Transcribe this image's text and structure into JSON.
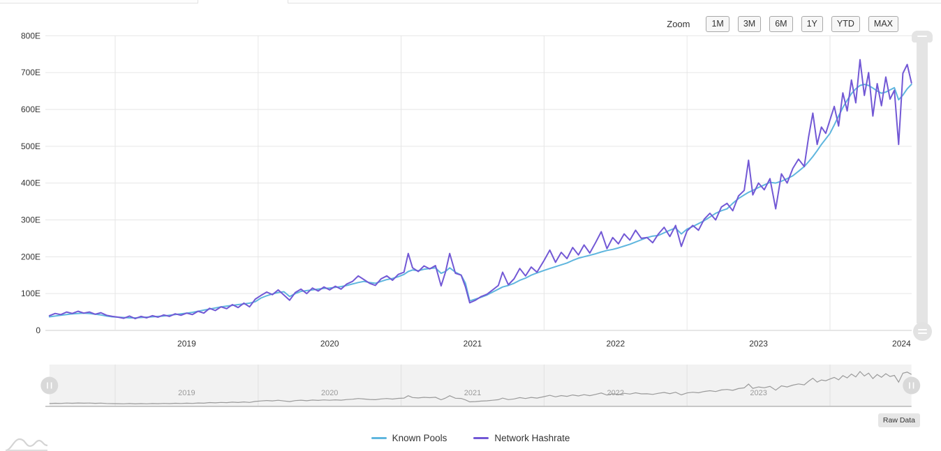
{
  "toolbar": {
    "zoom_label": "Zoom",
    "buttons": [
      "1M",
      "3M",
      "6M",
      "1Y",
      "YTD",
      "MAX"
    ]
  },
  "raw_data_label": "Raw Data",
  "legend": [
    {
      "label": "Known Pools",
      "color": "#5fb6de"
    },
    {
      "label": "Network Hashrate",
      "color": "#7258d5"
    }
  ],
  "chart_data": {
    "type": "line",
    "title": "",
    "xlabel": "",
    "ylabel": "",
    "x_unit": "decimal_year",
    "ylim": [
      0,
      800
    ],
    "xlim": [
      2018.54,
      2024.6
    ],
    "grid": true,
    "legend_position": "bottom",
    "yticks": {
      "values": [
        0,
        100,
        200,
        300,
        400,
        500,
        600,
        700,
        800
      ],
      "labels": [
        "0",
        "100E",
        "200E",
        "300E",
        "400E",
        "500E",
        "600E",
        "700E",
        "800E"
      ]
    },
    "x_year_gridlines": [
      2019,
      2020,
      2021,
      2022,
      2023,
      2024
    ],
    "x_year_labels": [
      "2019",
      "2020",
      "2021",
      "2022",
      "2023",
      "2024"
    ],
    "navigator": {
      "year_labels": [
        "2019",
        "2020",
        "2021",
        "2022",
        "2023"
      ],
      "series": "Network Hashrate"
    },
    "x": [
      2018.54,
      2018.58,
      2018.62,
      2018.66,
      2018.7,
      2018.74,
      2018.78,
      2018.82,
      2018.86,
      2018.9,
      2018.94,
      2018.98,
      2019.02,
      2019.06,
      2019.1,
      2019.14,
      2019.18,
      2019.22,
      2019.26,
      2019.3,
      2019.34,
      2019.38,
      2019.42,
      2019.46,
      2019.5,
      2019.54,
      2019.58,
      2019.62,
      2019.66,
      2019.7,
      2019.74,
      2019.78,
      2019.82,
      2019.86,
      2019.9,
      2019.94,
      2019.98,
      2020.02,
      2020.06,
      2020.1,
      2020.14,
      2020.18,
      2020.22,
      2020.26,
      2020.3,
      2020.34,
      2020.38,
      2020.42,
      2020.46,
      2020.5,
      2020.54,
      2020.58,
      2020.62,
      2020.66,
      2020.7,
      2020.74,
      2020.78,
      2020.82,
      2020.86,
      2020.9,
      2020.94,
      2020.98,
      2021.02,
      2021.05,
      2021.08,
      2021.12,
      2021.16,
      2021.2,
      2021.24,
      2021.28,
      2021.31,
      2021.34,
      2021.38,
      2021.42,
      2021.45,
      2021.48,
      2021.52,
      2021.56,
      2021.6,
      2021.64,
      2021.68,
      2021.71,
      2021.75,
      2021.79,
      2021.83,
      2021.87,
      2021.91,
      2021.95,
      2022.0,
      2022.04,
      2022.08,
      2022.12,
      2022.16,
      2022.2,
      2022.24,
      2022.28,
      2022.32,
      2022.36,
      2022.4,
      2022.44,
      2022.48,
      2022.52,
      2022.56,
      2022.6,
      2022.64,
      2022.68,
      2022.72,
      2022.76,
      2022.8,
      2022.84,
      2022.88,
      2022.92,
      2022.96,
      2023.0,
      2023.04,
      2023.08,
      2023.12,
      2023.16,
      2023.2,
      2023.24,
      2023.28,
      2023.32,
      2023.36,
      2023.4,
      2023.43,
      2023.46,
      2023.5,
      2023.54,
      2023.58,
      2023.62,
      2023.66,
      2023.7,
      2023.74,
      2023.78,
      2023.82,
      2023.85,
      2023.88,
      2023.91,
      2023.94,
      2023.97,
      2024.0,
      2024.03,
      2024.06,
      2024.09,
      2024.12,
      2024.15,
      2024.18,
      2024.21,
      2024.24,
      2024.27,
      2024.3,
      2024.33,
      2024.36,
      2024.39,
      2024.42,
      2024.45,
      2024.48,
      2024.51,
      2024.54,
      2024.57
    ],
    "series": [
      {
        "name": "Known Pools",
        "color": "#5fb6de",
        "width": 2,
        "values": [
          37,
          39,
          41,
          43,
          45,
          46,
          47,
          46,
          44,
          42,
          39,
          37,
          36,
          35,
          34,
          34,
          35,
          36,
          37,
          38,
          39,
          41,
          43,
          45,
          47,
          49,
          52,
          55,
          58,
          61,
          64,
          66,
          68,
          70,
          72,
          74,
          78,
          88,
          94,
          99,
          103,
          105,
          92,
          100,
          106,
          108,
          110,
          112,
          114,
          115,
          117,
          119,
          122,
          126,
          130,
          133,
          130,
          128,
          133,
          138,
          141,
          146,
          152,
          160,
          164,
          162,
          166,
          168,
          170,
          155,
          160,
          170,
          158,
          150,
          128,
          80,
          85,
          90,
          96,
          104,
          112,
          118,
          122,
          128,
          136,
          142,
          150,
          156,
          163,
          168,
          173,
          178,
          183,
          190,
          196,
          200,
          204,
          208,
          213,
          217,
          220,
          224,
          229,
          234,
          240,
          246,
          252,
          256,
          258,
          265,
          272,
          278,
          262,
          275,
          282,
          290,
          298,
          308,
          318,
          325,
          330,
          345,
          358,
          368,
          375,
          380,
          388,
          395,
          402,
          400,
          405,
          412,
          420,
          432,
          445,
          458,
          472,
          488,
          505,
          520,
          535,
          558,
          582,
          605,
          625,
          643,
          656,
          665,
          668,
          665,
          658,
          650,
          644,
          647,
          653,
          659,
          626,
          639,
          656,
          668
        ]
      },
      {
        "name": "Network Hashrate",
        "color": "#7258d5",
        "width": 2,
        "values": [
          40,
          46,
          43,
          50,
          46,
          52,
          47,
          50,
          44,
          48,
          41,
          38,
          36,
          33,
          39,
          32,
          38,
          34,
          40,
          36,
          42,
          38,
          45,
          41,
          47,
          43,
          52,
          47,
          60,
          54,
          64,
          59,
          70,
          62,
          74,
          64,
          85,
          95,
          104,
          97,
          110,
          96,
          82,
          103,
          112,
          100,
          115,
          107,
          118,
          110,
          120,
          112,
          126,
          133,
          148,
          138,
          128,
          122,
          140,
          148,
          136,
          152,
          158,
          209,
          170,
          160,
          175,
          167,
          176,
          121,
          158,
          209,
          155,
          150,
          118,
          75,
          82,
          92,
          98,
          110,
          122,
          158,
          124,
          140,
          168,
          148,
          172,
          158,
          190,
          218,
          185,
          212,
          195,
          225,
          205,
          232,
          210,
          238,
          268,
          222,
          252,
          235,
          262,
          245,
          272,
          250,
          252,
          238,
          262,
          280,
          255,
          285,
          228,
          270,
          285,
          272,
          302,
          318,
          300,
          335,
          345,
          325,
          365,
          380,
          462,
          368,
          400,
          382,
          412,
          330,
          425,
          400,
          440,
          465,
          445,
          525,
          590,
          505,
          552,
          535,
          572,
          608,
          555,
          645,
          596,
          680,
          618,
          735,
          638,
          700,
          582,
          670,
          610,
          688,
          628,
          652,
          505,
          698,
          722,
          672
        ]
      }
    ]
  }
}
